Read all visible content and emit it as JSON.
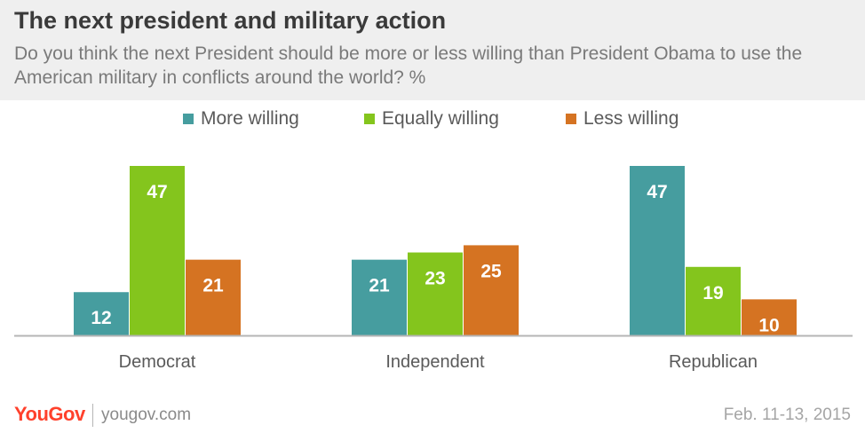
{
  "header": {
    "title": "The next president and military action",
    "subtitle": "Do you think the next President should be more or less willing than President Obama to use the American military in conflicts around the world? %"
  },
  "footer": {
    "logo": "YouGov",
    "url": "yougov.com",
    "date": "Feb. 11-13, 2015"
  },
  "colors": {
    "more": "#469d9f",
    "equal": "#84c51d",
    "less": "#d57322",
    "axis": "#b5b5b5"
  },
  "chart_data": {
    "type": "bar",
    "categories": [
      "Democrat",
      "Independent",
      "Republican"
    ],
    "series": [
      {
        "name": "More willing",
        "values": [
          12,
          21,
          47
        ]
      },
      {
        "name": "Equally willing",
        "values": [
          47,
          23,
          19
        ]
      },
      {
        "name": "Less willing",
        "values": [
          21,
          25,
          10
        ]
      }
    ],
    "legend_position": "top-center",
    "grid": false,
    "ylim": [
      0,
      47
    ]
  }
}
